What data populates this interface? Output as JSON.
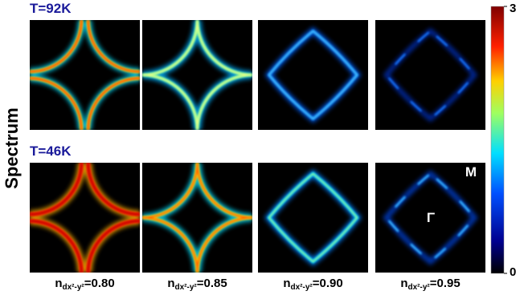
{
  "figure": {
    "ylabel": "Spectrum",
    "rows": [
      {
        "label": "T=92K"
      },
      {
        "label": "T=46K"
      }
    ],
    "columns": [
      {
        "symbol": "n",
        "subscript": "dx²-y²",
        "value": "=0.80"
      },
      {
        "symbol": "n",
        "subscript": "dx²-y²",
        "value": "=0.85"
      },
      {
        "symbol": "n",
        "subscript": "dx²-y²",
        "value": "=0.90"
      },
      {
        "symbol": "n",
        "subscript": "dx²-y²",
        "value": "=0.95"
      }
    ],
    "annotations": {
      "corner": "M",
      "center": "Γ"
    },
    "colorbar": {
      "ticks": [
        0,
        3
      ]
    }
  }
}
